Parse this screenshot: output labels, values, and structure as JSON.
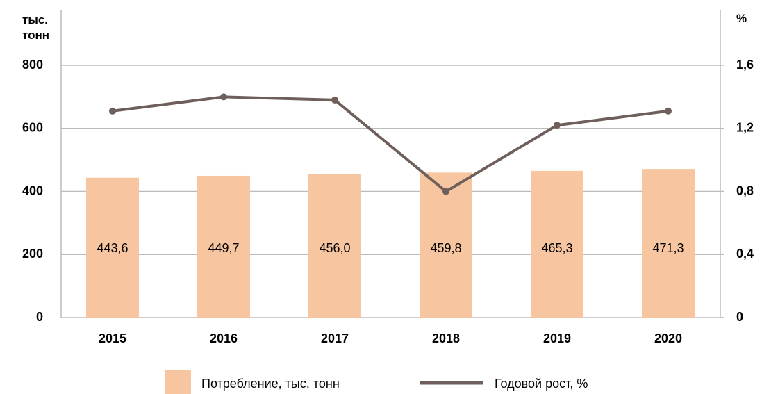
{
  "chart_data": {
    "type": "bar_line",
    "y_label": "тыс. тонн",
    "y2_label": "%",
    "categories": [
      "2015",
      "2016",
      "2017",
      "2018",
      "2019",
      "2020"
    ],
    "series": [
      {
        "name": "Потребление, тыс. тонн",
        "color": "#f7c59f",
        "type": "bar",
        "axis": "y",
        "values": [
          443.6,
          449.7,
          456.0,
          459.8,
          465.3,
          471.3
        ],
        "value_labels": [
          "443,6",
          "449,7",
          "456,0",
          "459,8",
          "465,3",
          "471,3"
        ]
      },
      {
        "name": "Годовой рост, %",
        "color": "#6e5f5a",
        "type": "line",
        "axis": "y2",
        "values": [
          1.31,
          1.4,
          1.38,
          0.8,
          1.22,
          1.31
        ]
      }
    ],
    "ylim": [
      0,
      800
    ],
    "yticks": [
      0,
      200,
      400,
      600,
      800
    ],
    "y2lim": [
      0,
      1.6
    ],
    "y2ticks": [
      0,
      {
        "value": 0.4,
        "label": "0,4"
      },
      {
        "value": 0.8,
        "label": "0,8"
      },
      {
        "value": 1.2,
        "label": "1,2"
      },
      {
        "value": 1.6,
        "label": "1,6"
      }
    ],
    "grid": true,
    "legend": "bottom"
  }
}
